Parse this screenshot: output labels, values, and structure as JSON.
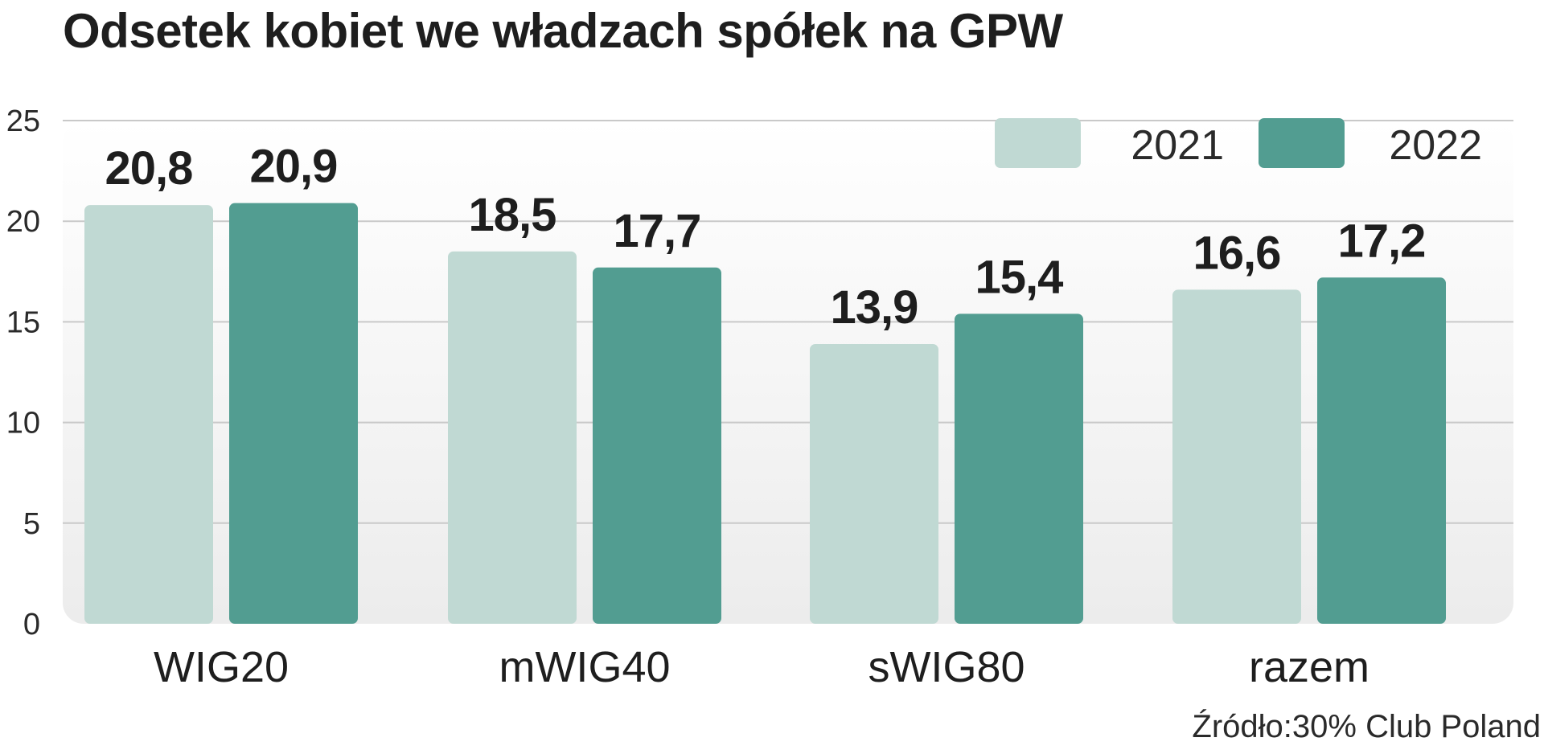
{
  "title": "Odsetek  kobiet we władzach spółek na GPW",
  "source": "Źródło:30% Club Poland",
  "colors": {
    "series_2021": "#c0d9d3",
    "series_2022": "#529d91",
    "panel": "#efefef",
    "grid": "#c9c9c9"
  },
  "chart_data": {
    "type": "bar",
    "title": "Odsetek  kobiet we władzach spółek na GPW",
    "xlabel": "",
    "ylabel": "",
    "categories": [
      "WIG20",
      "mWIG40",
      "sWIG80",
      "razem"
    ],
    "series": [
      {
        "name": "2021",
        "values": [
          20.8,
          18.5,
          13.9,
          16.6
        ],
        "labels": [
          "20,8",
          "18,5",
          "13,9",
          "16,6"
        ]
      },
      {
        "name": "2022",
        "values": [
          20.9,
          17.7,
          15.4,
          17.2
        ],
        "labels": [
          "20,9",
          "17,7",
          "15,4",
          "17,2"
        ]
      }
    ],
    "ylim": [
      0,
      25
    ],
    "yticks": [
      0,
      5,
      10,
      15,
      20,
      25
    ],
    "grid": true,
    "legend": "top-right"
  }
}
